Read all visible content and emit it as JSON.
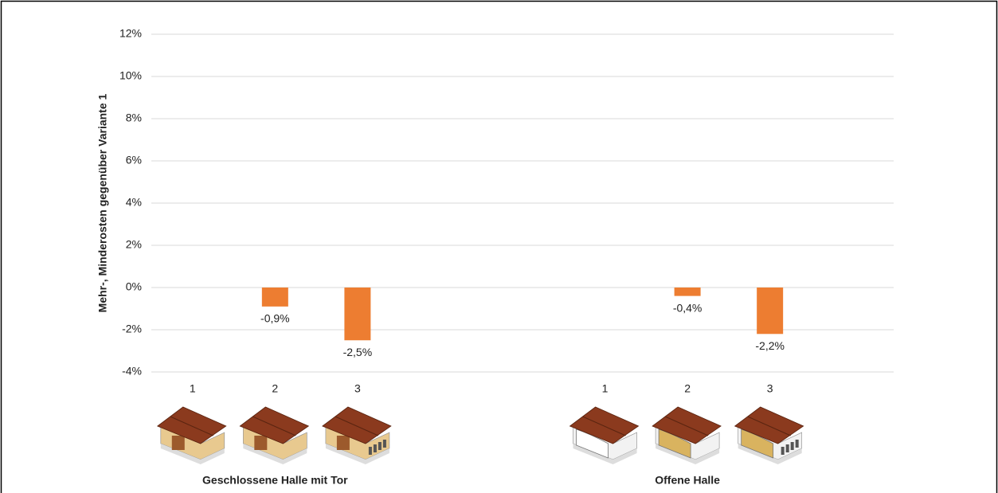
{
  "chart_data": {
    "type": "bar",
    "y_label": "Mehr-, Minderosten gegenüber Variante 1",
    "groups": [
      {
        "name": "Geschlossene Halle mit Tor",
        "categories": [
          "1",
          "2",
          "3"
        ],
        "values": [
          null,
          -0.9,
          -2.5
        ],
        "value_labels": [
          null,
          "-0,9%",
          "-2,5%"
        ]
      },
      {
        "name": "Offene Halle",
        "categories": [
          "1",
          "2",
          "3"
        ],
        "values": [
          null,
          -0.4,
          -2.2
        ],
        "value_labels": [
          null,
          "-0,4%",
          "-2,2%"
        ]
      }
    ],
    "color": "#ed7d31",
    "ylim": [
      -4,
      12
    ],
    "yticks": [
      {
        "value": -4,
        "label": "-4%"
      },
      {
        "value": -2,
        "label": "-2%"
      },
      {
        "value": 0,
        "label": "0%"
      },
      {
        "value": 2,
        "label": "2%"
      },
      {
        "value": 4,
        "label": "4%"
      },
      {
        "value": 6,
        "label": "6%"
      },
      {
        "value": 8,
        "label": "8%"
      },
      {
        "value": 10,
        "label": "10%"
      },
      {
        "value": 12,
        "label": "12%"
      }
    ],
    "grid": true
  }
}
